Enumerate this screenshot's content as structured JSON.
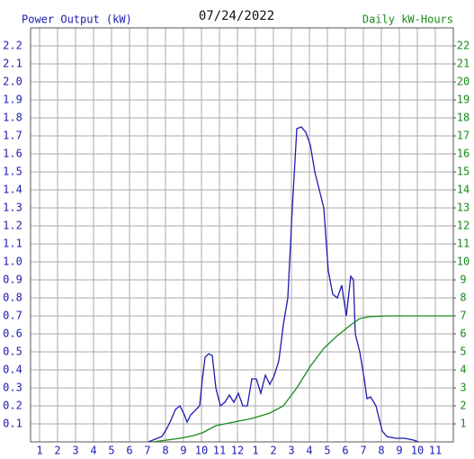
{
  "chart_data": {
    "type": "line",
    "title": "07/24/2022",
    "y_label": "Power Output (kW)",
    "y2_label": "Daily kW-Hours",
    "grid": true,
    "xlim": [
      0.5,
      24
    ],
    "xticks": [
      1,
      2,
      3,
      4,
      5,
      6,
      7,
      8,
      9,
      10,
      11,
      12,
      {
        "value": 13,
        "label": "1"
      },
      {
        "value": 14,
        "label": "2"
      },
      {
        "value": 15,
        "label": "3"
      },
      {
        "value": 16,
        "label": "4"
      },
      {
        "value": 17,
        "label": "5"
      },
      {
        "value": 18,
        "label": "6"
      },
      {
        "value": 19,
        "label": "7"
      },
      {
        "value": 20,
        "label": "8"
      },
      {
        "value": 21,
        "label": "9"
      },
      {
        "value": 22,
        "label": "10"
      },
      {
        "value": 23,
        "label": "11"
      }
    ],
    "ylim": [
      0,
      2.3
    ],
    "yticks": [
      0.1,
      0.2,
      0.3,
      0.4,
      0.5,
      0.6,
      0.7,
      0.8,
      0.9,
      {
        "value": 1,
        "label": "1.0"
      },
      1.1,
      1.2,
      1.3,
      1.4,
      1.5,
      1.6,
      1.7,
      1.8,
      1.9,
      {
        "value": 2,
        "label": "2.0"
      },
      2.1,
      2.2
    ],
    "y2lim": [
      0,
      23
    ],
    "y2ticks": [
      1,
      2,
      3,
      4,
      5,
      6,
      7,
      8,
      9,
      10,
      11,
      12,
      13,
      14,
      15,
      16,
      17,
      18,
      19,
      20,
      21,
      22
    ],
    "y_color": "#1c1cb0",
    "y2_color": "#1a8a1a",
    "series": [
      {
        "color": "#1c1cb0",
        "x": [
          7.05,
          7.3,
          7.8,
          8.05,
          8.3,
          8.55,
          8.8,
          9.05,
          9.2,
          9.4,
          9.7,
          9.9,
          10.05,
          10.2,
          10.4,
          10.6,
          10.8,
          11.05,
          11.3,
          11.55,
          11.8,
          12.05,
          12.3,
          12.55,
          12.8,
          13.05,
          13.3,
          13.55,
          13.8,
          14.05,
          14.3,
          14.55,
          14.8,
          15.05,
          15.3,
          15.55,
          15.8,
          16.05,
          16.3,
          16.55,
          16.8,
          17.05,
          17.3,
          17.55,
          17.8,
          18.05,
          18.3,
          18.45,
          18.55,
          18.8,
          19.05,
          19.2,
          19.4,
          19.7,
          19.9,
          20.05,
          20.3,
          20.8,
          21.3,
          21.8,
          22.05
        ],
        "values": [
          0,
          0.01,
          0.03,
          0.07,
          0.12,
          0.18,
          0.2,
          0.15,
          0.11,
          0.15,
          0.18,
          0.2,
          0.35,
          0.47,
          0.49,
          0.48,
          0.3,
          0.2,
          0.22,
          0.26,
          0.22,
          0.27,
          0.2,
          0.2,
          0.35,
          0.35,
          0.27,
          0.37,
          0.32,
          0.37,
          0.45,
          0.65,
          0.8,
          1.3,
          1.74,
          1.75,
          1.72,
          1.65,
          1.5,
          1.4,
          1.3,
          0.95,
          0.82,
          0.8,
          0.87,
          0.7,
          0.92,
          0.9,
          0.6,
          0.5,
          0.35,
          0.24,
          0.25,
          0.2,
          0.12,
          0.06,
          0.03,
          0.02,
          0.02,
          0.01,
          0
        ]
      },
      {
        "color": "#1a8a1a",
        "axis": "y2",
        "x": [
          7.3,
          8.8,
          9.55,
          10.05,
          10.8,
          11.8,
          12.8,
          13.8,
          14.55,
          15.3,
          16.05,
          16.8,
          17.55,
          18.3,
          18.8,
          19.3,
          20.3,
          24
        ],
        "values": [
          0,
          0.2,
          0.35,
          0.5,
          0.9,
          1.1,
          1.3,
          1.6,
          2.0,
          3.0,
          4.2,
          5.2,
          5.9,
          6.5,
          6.85,
          6.95,
          7.0,
          7.0
        ]
      }
    ]
  }
}
